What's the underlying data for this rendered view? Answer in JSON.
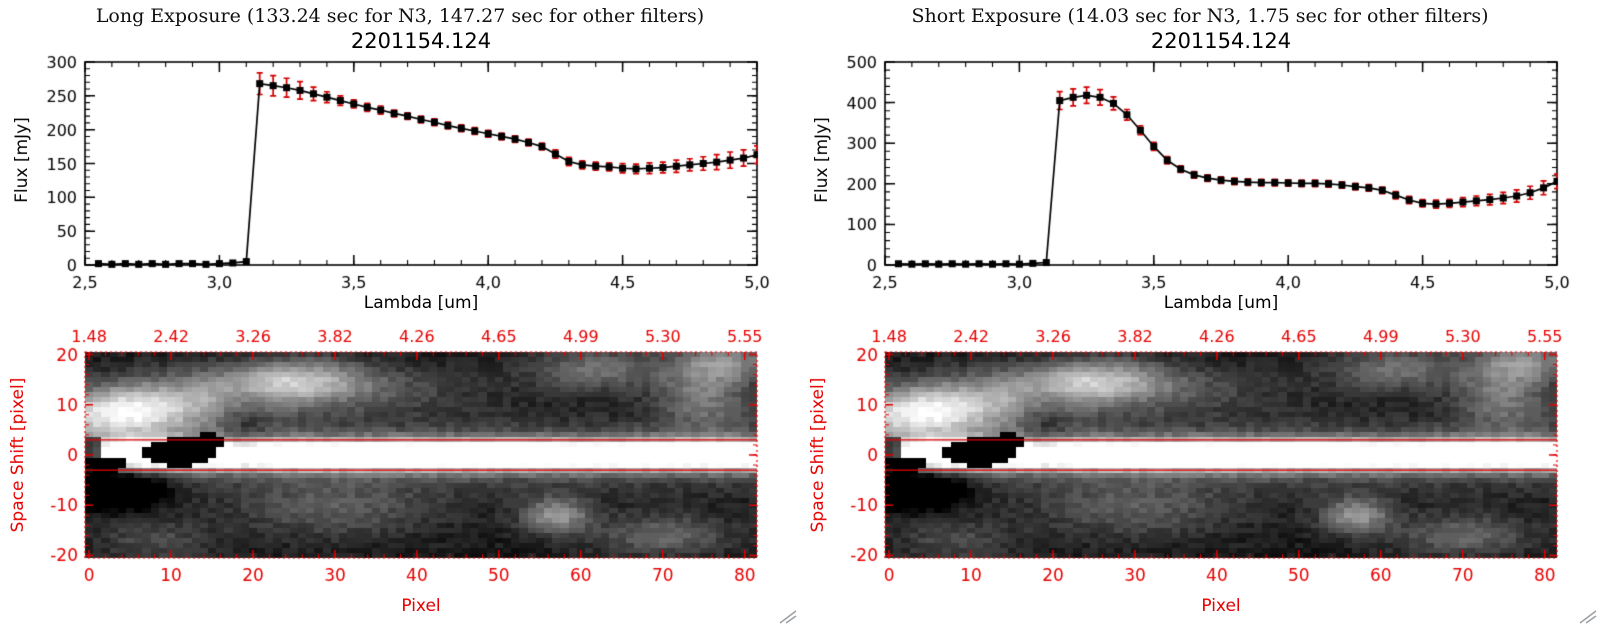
{
  "colors": {
    "axis_black": "#000000",
    "axis_red": "#e60000",
    "error_red": "#d40000",
    "marker_black": "#000000",
    "background": "#ffffff"
  },
  "panels": [
    {
      "header": "Long Exposure (133.24 sec for N3, 147.27 sec for other filters)"
    },
    {
      "header": "Short Exposure (14.03 sec for N3, 1.75 sec for other filters)"
    }
  ],
  "chart_data": [
    {
      "type": "line",
      "title": "2201154.124",
      "xlabel": "Lambda [um]",
      "ylabel": "Flux [mJy]",
      "xlim": [
        2.5,
        5.0
      ],
      "ylim": [
        0,
        300
      ],
      "xticks": [
        2.5,
        3.0,
        3.5,
        4.0,
        4.5,
        5.0
      ],
      "xtick_labels": [
        "2,5",
        "3,0",
        "3,5",
        "4,0",
        "4,5",
        "5,0"
      ],
      "yticks": [
        0,
        50,
        100,
        150,
        200,
        250,
        300
      ],
      "x_minor_step": 0.1,
      "y_minor_step": 10,
      "grid": false,
      "marker": "filled-square",
      "line_color": "#000000",
      "error_color": "#d40000",
      "x": [
        2.55,
        2.6,
        2.65,
        2.7,
        2.75,
        2.8,
        2.85,
        2.9,
        2.95,
        3.0,
        3.05,
        3.1,
        3.15,
        3.2,
        3.25,
        3.3,
        3.35,
        3.4,
        3.45,
        3.5,
        3.55,
        3.6,
        3.65,
        3.7,
        3.75,
        3.8,
        3.85,
        3.9,
        3.95,
        4.0,
        4.05,
        4.1,
        4.15,
        4.2,
        4.25,
        4.3,
        4.35,
        4.4,
        4.45,
        4.5,
        4.55,
        4.6,
        4.65,
        4.7,
        4.75,
        4.8,
        4.85,
        4.9,
        4.95,
        5.0
      ],
      "y": [
        2,
        1,
        2,
        1,
        2,
        1,
        2,
        2,
        1,
        2,
        3,
        5,
        268,
        265,
        262,
        258,
        253,
        248,
        243,
        238,
        233,
        229,
        224,
        220,
        215,
        211,
        206,
        202,
        198,
        194,
        190,
        186,
        181,
        175,
        164,
        153,
        148,
        146,
        145,
        143,
        142,
        143,
        144,
        146,
        148,
        150,
        152,
        155,
        158,
        163
      ],
      "yerr": [
        3,
        3,
        3,
        3,
        3,
        3,
        3,
        3,
        3,
        3,
        3,
        3,
        16,
        15,
        14,
        13,
        10,
        8,
        7,
        6,
        6,
        6,
        5,
        5,
        5,
        5,
        5,
        5,
        5,
        5,
        5,
        5,
        5,
        5,
        6,
        6,
        6,
        6,
        6,
        7,
        7,
        8,
        8,
        9,
        9,
        10,
        11,
        12,
        12,
        13
      ]
    },
    {
      "type": "heatmap",
      "xlabel": "Pixel",
      "ylabel": "Space Shift [pixel]",
      "xlim": [
        -0.5,
        81.5
      ],
      "ylim": [
        -20.5,
        20.5
      ],
      "xticks": [
        0,
        10,
        20,
        30,
        40,
        50,
        60,
        70,
        80
      ],
      "yticks": [
        20,
        10,
        0,
        -10,
        -20
      ],
      "top_axis_labels": [
        "1.48",
        "2.42",
        "3.26",
        "3.82",
        "4.26",
        "4.65",
        "4.99",
        "5.30",
        "5.55"
      ],
      "aperture_lines_y": [
        3,
        -3
      ],
      "frame_style": "red-dashed",
      "description": "Grayscale 2D spectral image: bright horizontal trace at space shift 0, red extraction aperture lines at +/-3 pixels, diffuse bright cloud upper-left, dark masked blobs near pixel 8-15"
    },
    {
      "type": "line",
      "title": "2201154.124",
      "xlabel": "Lambda [um]",
      "ylabel": "Flux [mJy]",
      "xlim": [
        2.5,
        5.0
      ],
      "ylim": [
        0,
        500
      ],
      "xticks": [
        2.5,
        3.0,
        3.5,
        4.0,
        4.5,
        5.0
      ],
      "xtick_labels": [
        "2,5",
        "3,0",
        "3,5",
        "4,0",
        "4,5",
        "5,0"
      ],
      "yticks": [
        0,
        100,
        200,
        300,
        400,
        500
      ],
      "x_minor_step": 0.1,
      "y_minor_step": 20,
      "grid": false,
      "marker": "filled-square",
      "line_color": "#000000",
      "error_color": "#d40000",
      "x": [
        2.55,
        2.6,
        2.65,
        2.7,
        2.75,
        2.8,
        2.85,
        2.9,
        2.95,
        3.0,
        3.05,
        3.1,
        3.15,
        3.2,
        3.25,
        3.3,
        3.35,
        3.4,
        3.45,
        3.5,
        3.55,
        3.6,
        3.65,
        3.7,
        3.75,
        3.8,
        3.85,
        3.9,
        3.95,
        4.0,
        4.05,
        4.1,
        4.15,
        4.2,
        4.25,
        4.3,
        4.35,
        4.4,
        4.45,
        4.5,
        4.55,
        4.6,
        4.65,
        4.7,
        4.75,
        4.8,
        4.85,
        4.9,
        4.95,
        5.0
      ],
      "y": [
        3,
        2,
        3,
        2,
        3,
        2,
        3,
        2,
        3,
        2,
        4,
        6,
        405,
        413,
        418,
        413,
        398,
        370,
        332,
        292,
        258,
        236,
        222,
        214,
        209,
        206,
        204,
        203,
        203,
        202,
        201,
        201,
        200,
        197,
        193,
        190,
        184,
        172,
        160,
        152,
        150,
        152,
        155,
        158,
        161,
        165,
        170,
        178,
        190,
        206
      ],
      "yerr": [
        4,
        4,
        4,
        4,
        4,
        4,
        4,
        4,
        4,
        4,
        4,
        4,
        22,
        21,
        20,
        19,
        16,
        13,
        11,
        10,
        9,
        8,
        8,
        8,
        8,
        8,
        8,
        8,
        8,
        8,
        8,
        8,
        8,
        8,
        8,
        8,
        8,
        9,
        9,
        9,
        10,
        10,
        11,
        12,
        13,
        14,
        15,
        16,
        17,
        18
      ]
    },
    {
      "type": "heatmap",
      "xlabel": "Pixel",
      "ylabel": "Space Shift [pixel]",
      "xlim": [
        -0.5,
        81.5
      ],
      "ylim": [
        -20.5,
        20.5
      ],
      "xticks": [
        0,
        10,
        20,
        30,
        40,
        50,
        60,
        70,
        80
      ],
      "yticks": [
        20,
        10,
        0,
        -10,
        -20
      ],
      "top_axis_labels": [
        "1.48",
        "2.42",
        "3.26",
        "3.82",
        "4.26",
        "4.65",
        "4.99",
        "5.30",
        "5.55"
      ],
      "aperture_lines_y": [
        3,
        -3
      ],
      "frame_style": "red-dashed",
      "description": "Grayscale 2D spectral image: bright horizontal trace at space shift 0, red extraction aperture lines at +/-3 pixels, diffuse bright cloud upper-left, dark masked blobs near pixel 8-15"
    }
  ]
}
